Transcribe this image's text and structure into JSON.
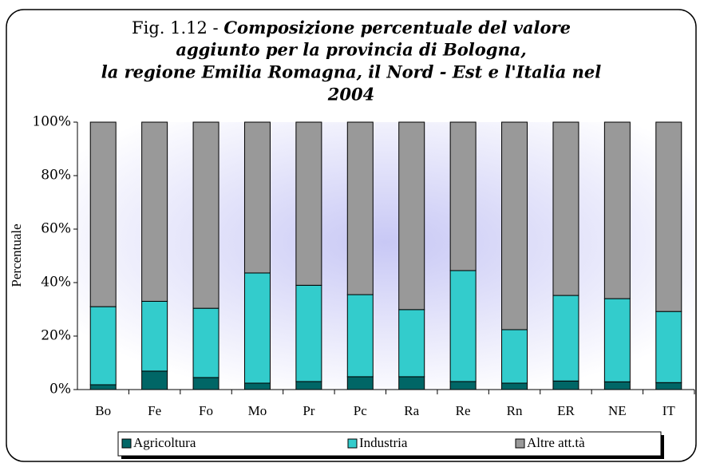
{
  "chart_data": {
    "type": "stacked_bar",
    "title": [
      "Fig. 1.12 - ",
      "Composizione percentuale del valore",
      "aggiunto per la provincia di Bologna,",
      "la regione Emilia Romagna, il Nord - Est e l'Italia nel",
      "2004"
    ],
    "y_label": "Percentuale",
    "categories": [
      "Bo",
      "Fe",
      "Fo",
      "Mo",
      "Pr",
      "Pc",
      "Ra",
      "Re",
      "Rn",
      "ER",
      "NE",
      "IT"
    ],
    "series": [
      {
        "name": "Agricoltura",
        "color": "#006666",
        "values": [
          1.8,
          6.9,
          4.5,
          2.4,
          3.0,
          4.8,
          4.8,
          3.0,
          2.4,
          3.2,
          2.9,
          2.6
        ]
      },
      {
        "name": "Industria",
        "color": "#33cccc",
        "values": [
          29.2,
          26.1,
          25.9,
          41.2,
          36.0,
          30.7,
          25.1,
          41.5,
          20.0,
          32.0,
          31.1,
          26.6
        ]
      },
      {
        "name": "Altre att.tà",
        "color": "#999999",
        "values": [
          69.0,
          67.0,
          69.6,
          56.4,
          61.0,
          64.5,
          70.1,
          55.5,
          77.6,
          64.8,
          66.0,
          70.8
        ]
      }
    ],
    "ylim": [
      0,
      100
    ],
    "yticks": [
      {
        "value": 0,
        "label": "0%"
      },
      {
        "value": 20,
        "label": "20%"
      },
      {
        "value": 40,
        "label": "40%"
      },
      {
        "value": 60,
        "label": "60%"
      },
      {
        "value": 80,
        "label": "80%"
      },
      {
        "value": 100,
        "label": "100%"
      }
    ]
  }
}
